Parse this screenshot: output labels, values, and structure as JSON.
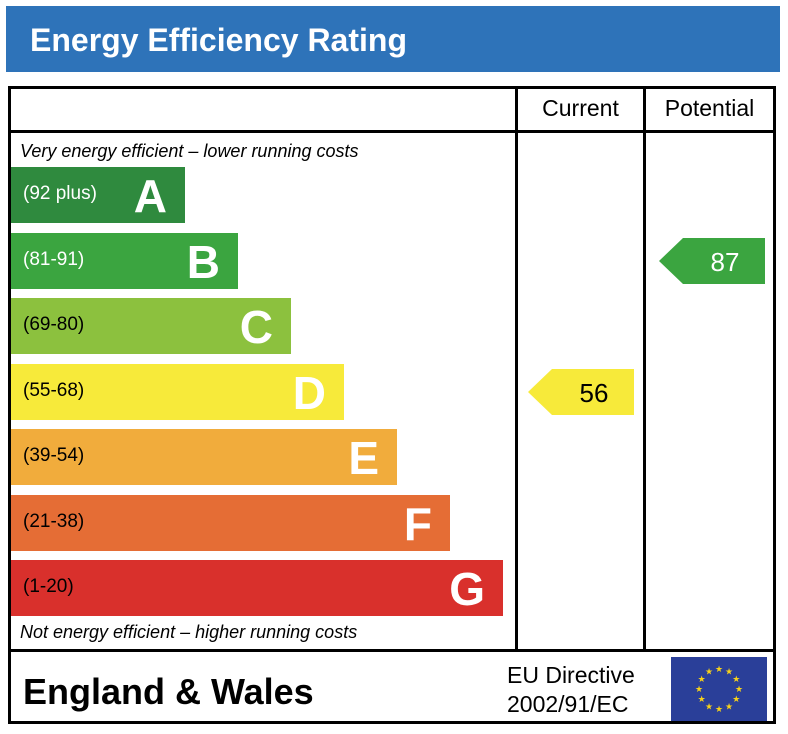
{
  "header": {
    "title": "Energy Efficiency Rating"
  },
  "columns": {
    "current": "Current",
    "potential": "Potential"
  },
  "notes": {
    "top": "Very energy efficient – lower running costs",
    "bottom": "Not energy efficient – higher running costs"
  },
  "chart_data": {
    "type": "bar",
    "title": "Energy Efficiency Rating",
    "bands": [
      {
        "letter": "A",
        "range": "(92 plus)",
        "color": "#2f8a3e",
        "text_color": "#ffffff"
      },
      {
        "letter": "B",
        "range": "(81-91)",
        "color": "#3ba540",
        "text_color": "#ffffff"
      },
      {
        "letter": "C",
        "range": "(69-80)",
        "color": "#8cc13e",
        "text_color": "#000000"
      },
      {
        "letter": "D",
        "range": "(55-68)",
        "color": "#f7ea3a",
        "text_color": "#000000"
      },
      {
        "letter": "E",
        "range": "(39-54)",
        "color": "#f1ac3c",
        "text_color": "#000000"
      },
      {
        "letter": "F",
        "range": "(21-38)",
        "color": "#e56d35",
        "text_color": "#000000"
      },
      {
        "letter": "G",
        "range": "(1-20)",
        "color": "#d9302c",
        "text_color": "#000000"
      }
    ],
    "current": {
      "value": 56,
      "band": "D",
      "color": "#f7ea3a",
      "text_color": "#000000"
    },
    "potential": {
      "value": 87,
      "band": "B",
      "color": "#3ba540",
      "text_color": "#ffffff"
    }
  },
  "footer": {
    "region": "England & Wales",
    "directive_line1": "EU Directive",
    "directive_line2": "2002/91/EC",
    "flag_icon": "eu-flag-icon"
  }
}
